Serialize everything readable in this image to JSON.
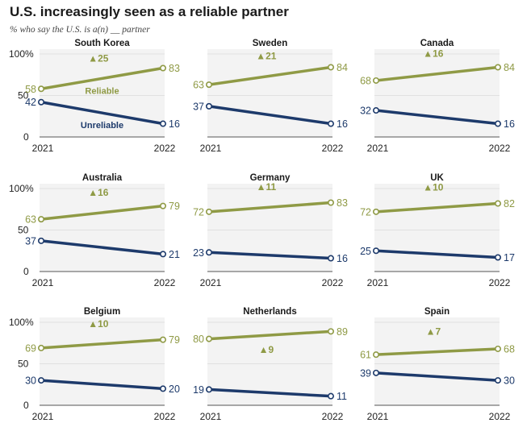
{
  "title": "U.S. increasingly seen as a reliable partner",
  "subtitle": "% who say the U.S. is a(n) __ partner",
  "colors": {
    "reliable": "#8f9a45",
    "unreliable": "#1d3a6b",
    "panel_bg": "#f3f3f3"
  },
  "chart_data": {
    "type": "line",
    "x": [
      "2021",
      "2022"
    ],
    "ylim": [
      0,
      100
    ],
    "yticks": [
      "100%",
      "50",
      "0"
    ],
    "series_names": {
      "reliable": "Reliable",
      "unreliable": "Unreliable"
    },
    "panels": [
      {
        "name": "South Korea",
        "reliable": [
          58,
          83
        ],
        "unreliable": [
          42,
          16
        ],
        "change": "▲25"
      },
      {
        "name": "Sweden",
        "reliable": [
          63,
          84
        ],
        "unreliable": [
          37,
          16
        ],
        "change": "▲21"
      },
      {
        "name": "Canada",
        "reliable": [
          68,
          84
        ],
        "unreliable": [
          32,
          16
        ],
        "change": "▲16"
      },
      {
        "name": "Australia",
        "reliable": [
          63,
          79
        ],
        "unreliable": [
          37,
          21
        ],
        "change": "▲16"
      },
      {
        "name": "Germany",
        "reliable": [
          72,
          83
        ],
        "unreliable": [
          23,
          16
        ],
        "change": "▲11"
      },
      {
        "name": "UK",
        "reliable": [
          72,
          82
        ],
        "unreliable": [
          25,
          17
        ],
        "change": "▲10"
      },
      {
        "name": "Belgium",
        "reliable": [
          69,
          79
        ],
        "unreliable": [
          30,
          20
        ],
        "change": "▲10"
      },
      {
        "name": "Netherlands",
        "reliable": [
          80,
          89
        ],
        "unreliable": [
          19,
          11
        ],
        "change": "▲9"
      },
      {
        "name": "Spain",
        "reliable": [
          61,
          68
        ],
        "unreliable": [
          39,
          30
        ],
        "change": "▲7"
      }
    ]
  }
}
